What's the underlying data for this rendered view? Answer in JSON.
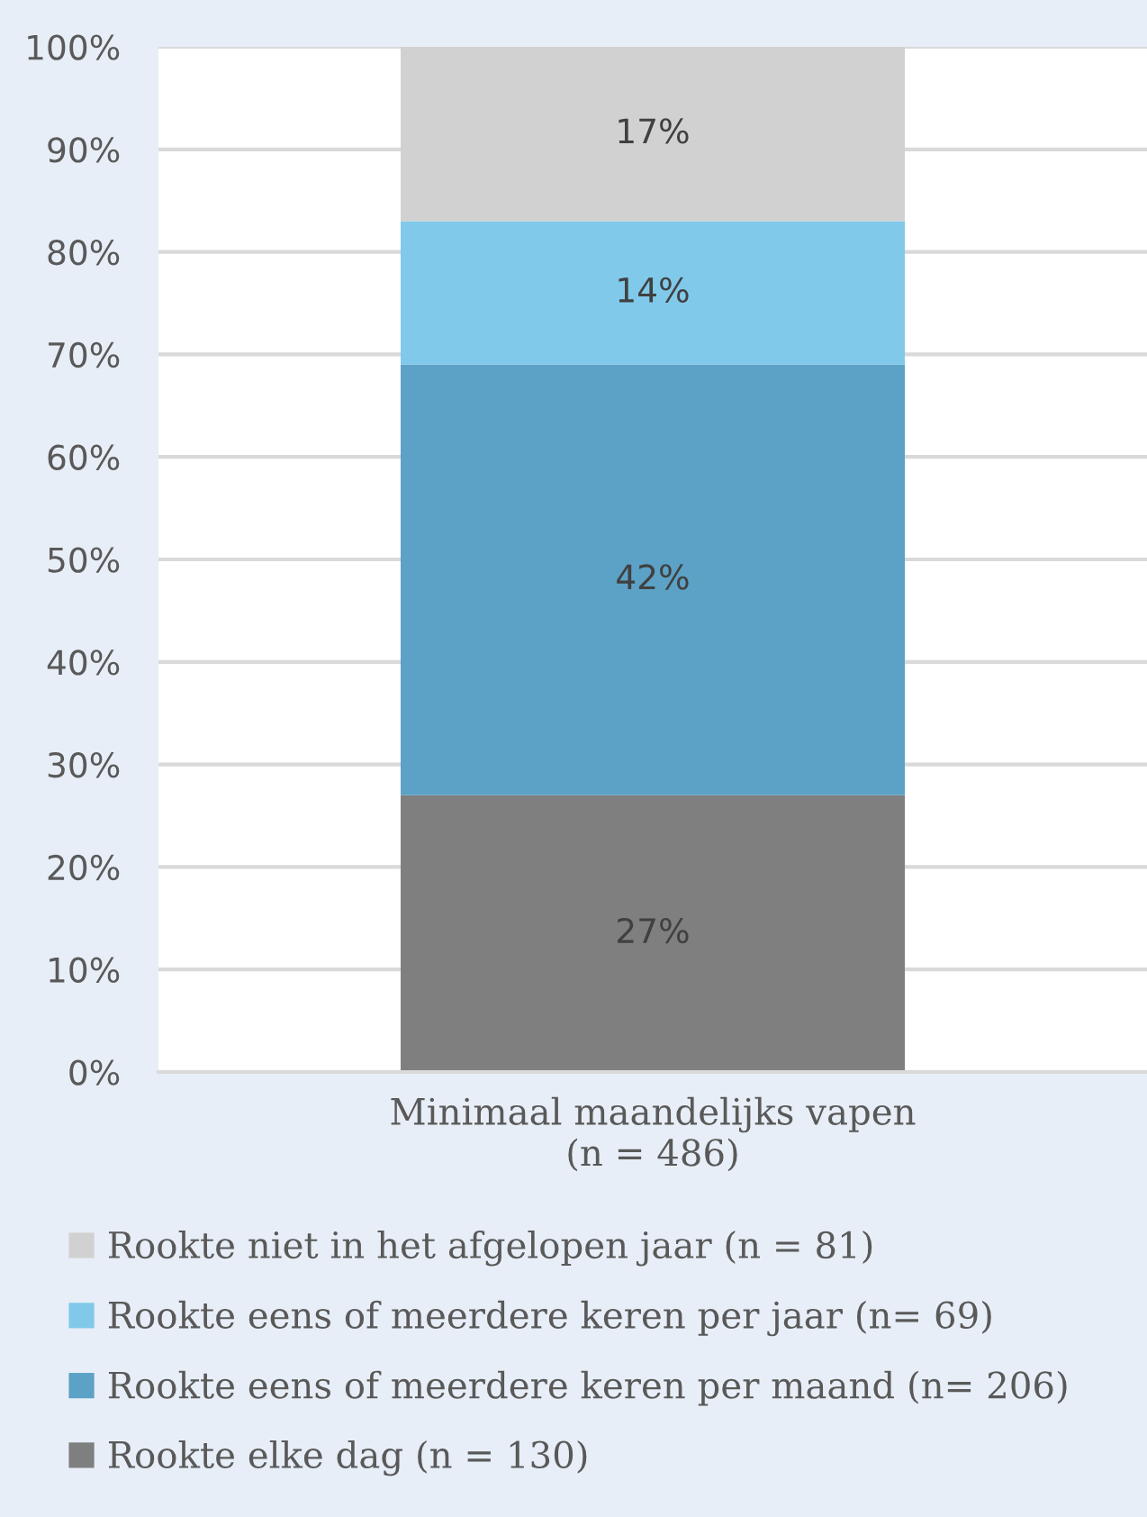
{
  "chart_data": {
    "type": "bar",
    "stacked": true,
    "categories": [
      "Minimaal maandelijks vapen\n(n = 486)"
    ],
    "series": [
      {
        "name": "Rookte elke dag (n = 130)",
        "color": "#7f7f7f",
        "values": [
          27
        ],
        "value_labels": [
          "27%"
        ]
      },
      {
        "name": "Rookte eens of meerdere keren per maand (n= 206)",
        "color": "#5ca1c6",
        "values": [
          42
        ],
        "value_labels": [
          "42%"
        ]
      },
      {
        "name": "Rookte eens of meerdere keren per jaar (n= 69)",
        "color": "#80c9ea",
        "values": [
          14
        ],
        "value_labels": [
          "14%"
        ]
      },
      {
        "name": "Rookte niet in het afgelopen jaar (n = 81)",
        "color": "#d1d1d1",
        "values": [
          17
        ],
        "value_labels": [
          "17%"
        ]
      }
    ],
    "ylim": [
      0,
      100
    ],
    "yticks": [
      {
        "value": 0,
        "label": "0%"
      },
      {
        "value": 10,
        "label": "10%"
      },
      {
        "value": 20,
        "label": "20%"
      },
      {
        "value": 30,
        "label": "30%"
      },
      {
        "value": 40,
        "label": "40%"
      },
      {
        "value": 50,
        "label": "50%"
      },
      {
        "value": 60,
        "label": "60%"
      },
      {
        "value": 70,
        "label": "70%"
      },
      {
        "value": 80,
        "label": "80%"
      },
      {
        "value": 90,
        "label": "90%"
      },
      {
        "value": 100,
        "label": "100%"
      }
    ],
    "grid": "y",
    "legend": "bottom"
  }
}
